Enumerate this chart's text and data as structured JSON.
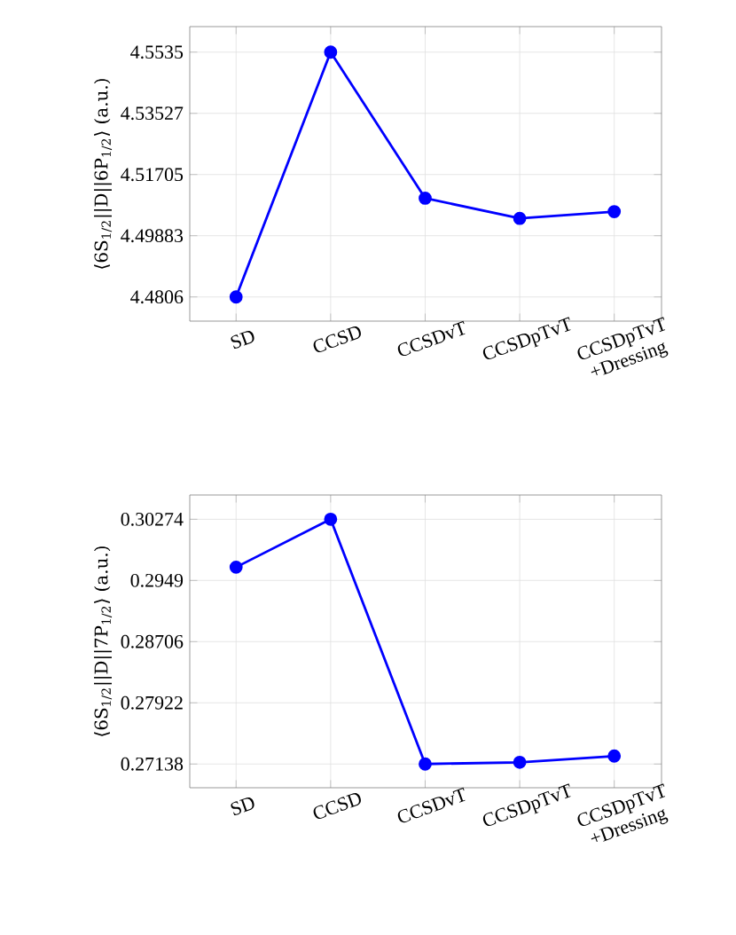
{
  "chart_data": [
    {
      "type": "line",
      "ylabel": "⟨6S$_{1/2}$||D||6P$_{1/2}$⟩ (a.u.)",
      "categories": [
        "SD",
        "CCSD",
        "CCSDvT",
        "CCSDpTvT",
        "CCSDpTvT +Dressing"
      ],
      "series": [
        {
          "color": "#0000ff",
          "values": [
            4.4806,
            4.5535,
            4.51,
            4.504,
            4.506
          ]
        }
      ],
      "ylim": [
        4.4734,
        4.5611
      ],
      "yticks": [
        4.4806,
        4.49883,
        4.51705,
        4.53527,
        4.5535
      ],
      "grid": true,
      "marker": "circle",
      "line_style": "solid"
    },
    {
      "type": "line",
      "ylabel": "⟨6S$_{1/2}$||D||7P$_{1/2}$⟩ (a.u.)",
      "categories": [
        "SD",
        "CCSD",
        "CCSDvT",
        "CCSDpTvT",
        "CCSDpTvT +Dressing"
      ],
      "series": [
        {
          "color": "#0000ff",
          "values": [
            0.2966,
            0.30274,
            0.27138,
            0.2716,
            0.2724
          ]
        }
      ],
      "ylim": [
        0.26834,
        0.30585
      ],
      "yticks": [
        0.27138,
        0.27922,
        0.28706,
        0.2949,
        0.30274
      ],
      "grid": true,
      "marker": "circle",
      "line_style": "solid"
    }
  ]
}
